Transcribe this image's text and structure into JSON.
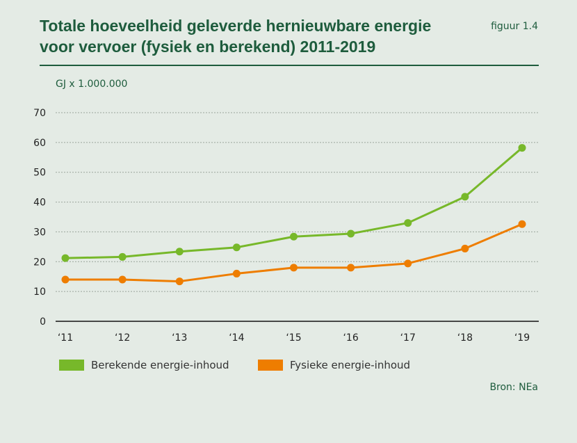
{
  "header": {
    "title": "Totale hoeveelheid geleverde hernieuwbare energie voor vervoer (fysiek en berekend) 2011-2019",
    "figure_label": "figuur 1.4"
  },
  "footer": {
    "source": "Bron: NEa"
  },
  "colors": {
    "title": "#1e5c3d",
    "background": "#e4ebe5",
    "berekend": "#77b82a",
    "fysiek": "#ee7d00"
  },
  "chart_data": {
    "type": "line",
    "title": "Totale hoeveelheid geleverde hernieuwbare energie voor vervoer (fysiek en berekend) 2011-2019",
    "ylabel": "GJ x 1.000.000",
    "xlabel": "",
    "categories": [
      "‘11",
      "‘12",
      "‘13",
      "‘14",
      "‘15",
      "‘16",
      "‘17",
      "‘18",
      "‘19"
    ],
    "ylim": [
      0,
      70
    ],
    "yticks": [
      "0",
      "10",
      "20",
      "30",
      "40",
      "50",
      "60",
      "70"
    ],
    "grid": true,
    "legend_position": "bottom-left",
    "series": [
      {
        "name": "Berekende energie-inhoud",
        "color": "#77b82a",
        "values": [
          21.2,
          21.6,
          23.4,
          24.8,
          28.4,
          29.4,
          33.0,
          41.8,
          58.2
        ]
      },
      {
        "name": "Fysieke energie-inhoud",
        "color": "#ee7d00",
        "values": [
          14.0,
          14.0,
          13.4,
          16.0,
          18.0,
          18.0,
          19.4,
          24.4,
          32.6
        ]
      }
    ]
  }
}
